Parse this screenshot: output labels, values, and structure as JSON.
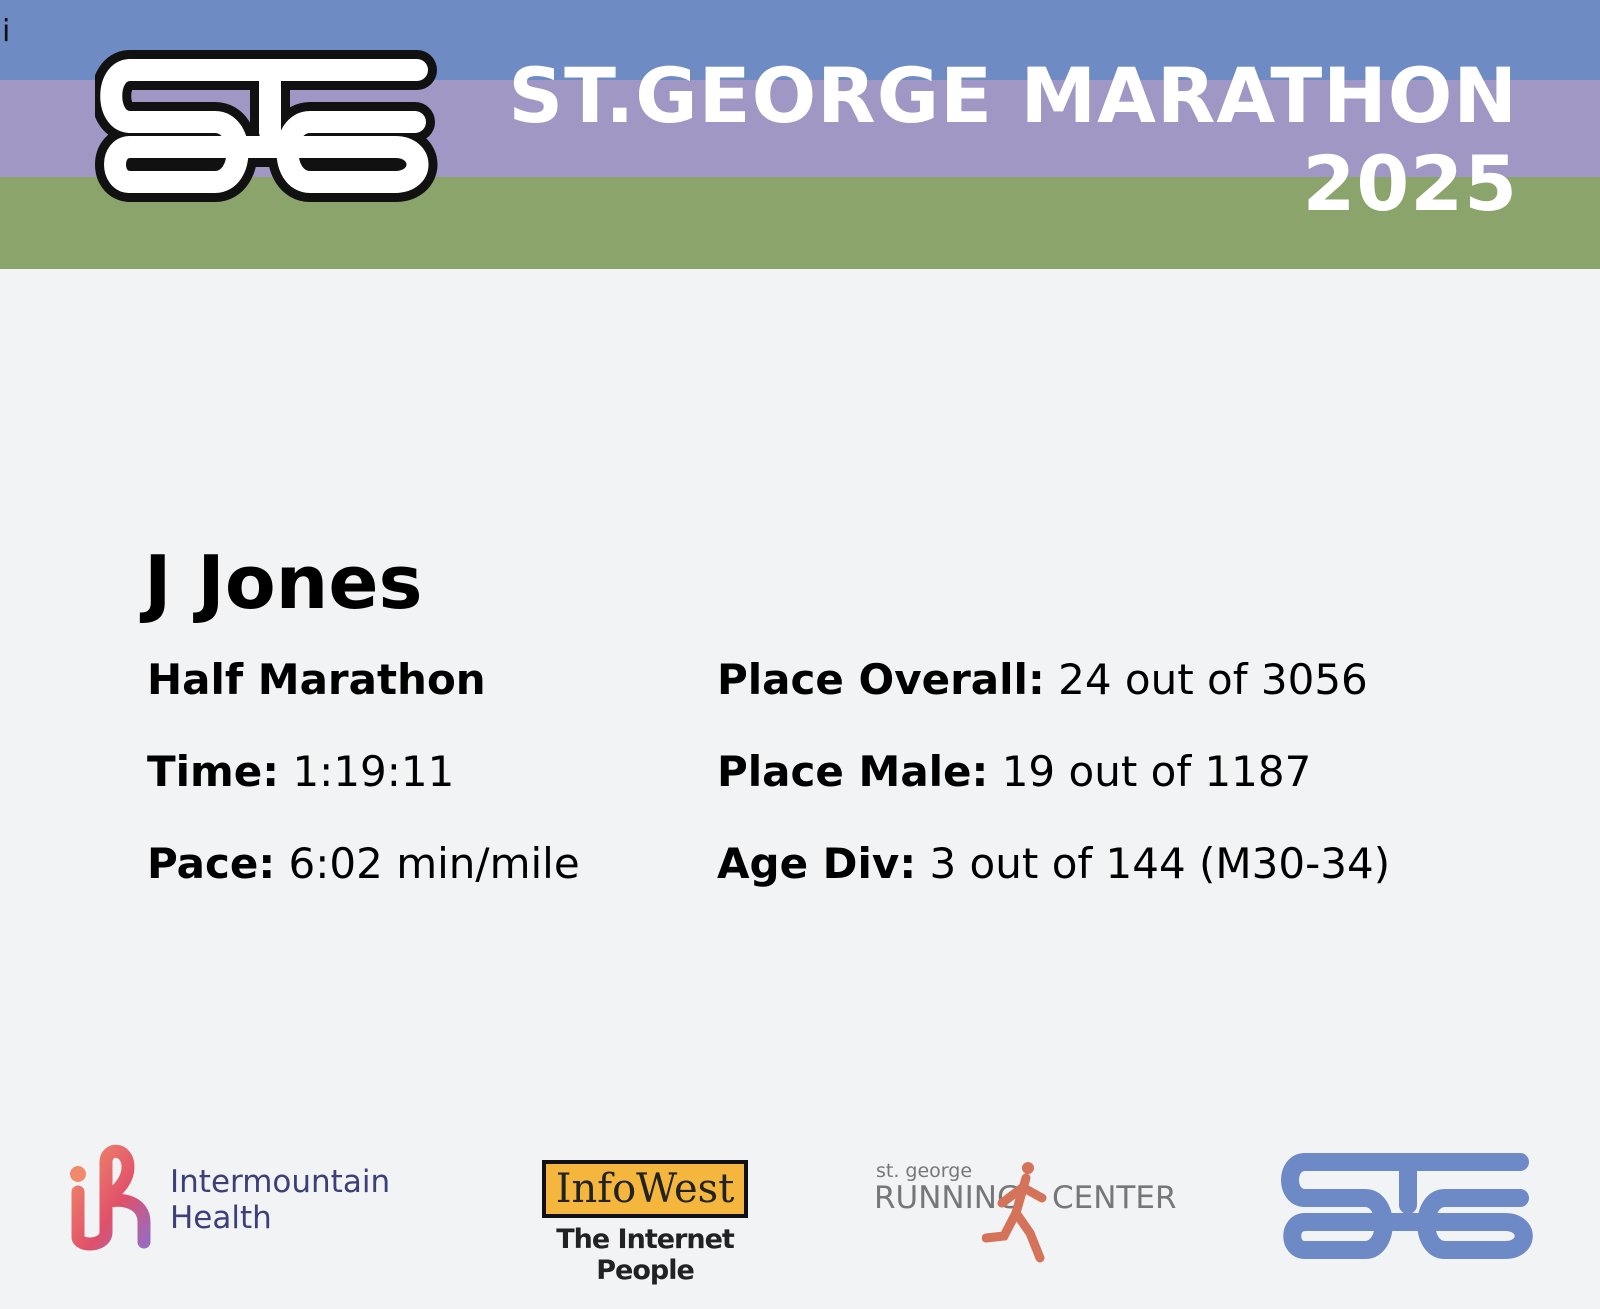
{
  "header": {
    "cursor_glyph": "i",
    "title_line1": "ST.GEORGE MARATHON",
    "title_line2": "2025",
    "colors": {
      "band_top": "#6f8bc3",
      "band_middle": "#a197c4",
      "band_bottom": "#8aa46b"
    }
  },
  "result": {
    "name": "J Jones",
    "race": "Half Marathon",
    "time_label": "Time:",
    "time": "1:19:11",
    "pace_label": "Pace:",
    "pace": "6:02 min/mile",
    "overall_label": "Place Overall:",
    "overall": "24 out of 3056",
    "male_label": "Place Male:",
    "male": "19 out of 1187",
    "agediv_label": "Age Div:",
    "agediv": "3 out of 144 (M30-34)"
  },
  "sponsors": {
    "intermountain_line1": "Intermountain",
    "intermountain_line2": "Health",
    "infowest": "InfoWest",
    "infowest_tagline": "The Internet People",
    "running_small": "st. george",
    "running_left": "RUNNING",
    "running_right": "CENTER"
  }
}
